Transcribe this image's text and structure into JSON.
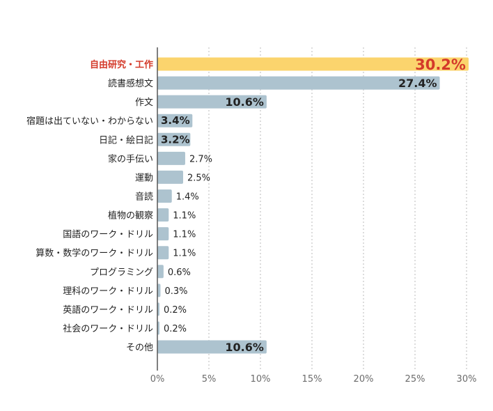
{
  "chart_data": {
    "type": "bar",
    "orientation": "horizontal",
    "title": "",
    "xlabel": "",
    "ylabel": "",
    "xlim": [
      0,
      30
    ],
    "xticks": [
      0,
      5,
      10,
      15,
      20,
      25,
      30
    ],
    "xtick_labels": [
      "0%",
      "5%",
      "10%",
      "15%",
      "20%",
      "25%",
      "30%"
    ],
    "grid": true,
    "legend": "none",
    "categories": [
      "自由研究・工作",
      "読書感想文",
      "作文",
      "宿題は出ていない・わからない",
      "日記・絵日記",
      "家の手伝い",
      "運動",
      "音読",
      "植物の観察",
      "国語のワーク・ドリル",
      "算数・数学のワーク・ドリル",
      "プログラミング",
      "理科のワーク・ドリル",
      "英語のワーク・ドリル",
      "社会のワーク・ドリル",
      "その他"
    ],
    "values": [
      30.2,
      27.4,
      10.6,
      3.4,
      3.2,
      2.7,
      2.5,
      1.4,
      1.1,
      1.1,
      1.1,
      0.6,
      0.3,
      0.2,
      0.2,
      10.6
    ],
    "value_labels": [
      "30.2%",
      "27.4%",
      "10.6%",
      "3.4%",
      "3.2%",
      "2.7%",
      "2.5%",
      "1.4%",
      "1.1%",
      "1.1%",
      "1.1%",
      "0.6%",
      "0.3%",
      "0.2%",
      "0.2%",
      "10.6%"
    ],
    "highlight_index": 0,
    "colors": {
      "bar": "#adc3cf",
      "highlight_bar": "#fbd46d",
      "highlight_text": "#d43a2a",
      "text": "#222222",
      "tick_text": "#6b6b6b",
      "grid": "#b9b9b9",
      "axis": "#555555"
    }
  }
}
